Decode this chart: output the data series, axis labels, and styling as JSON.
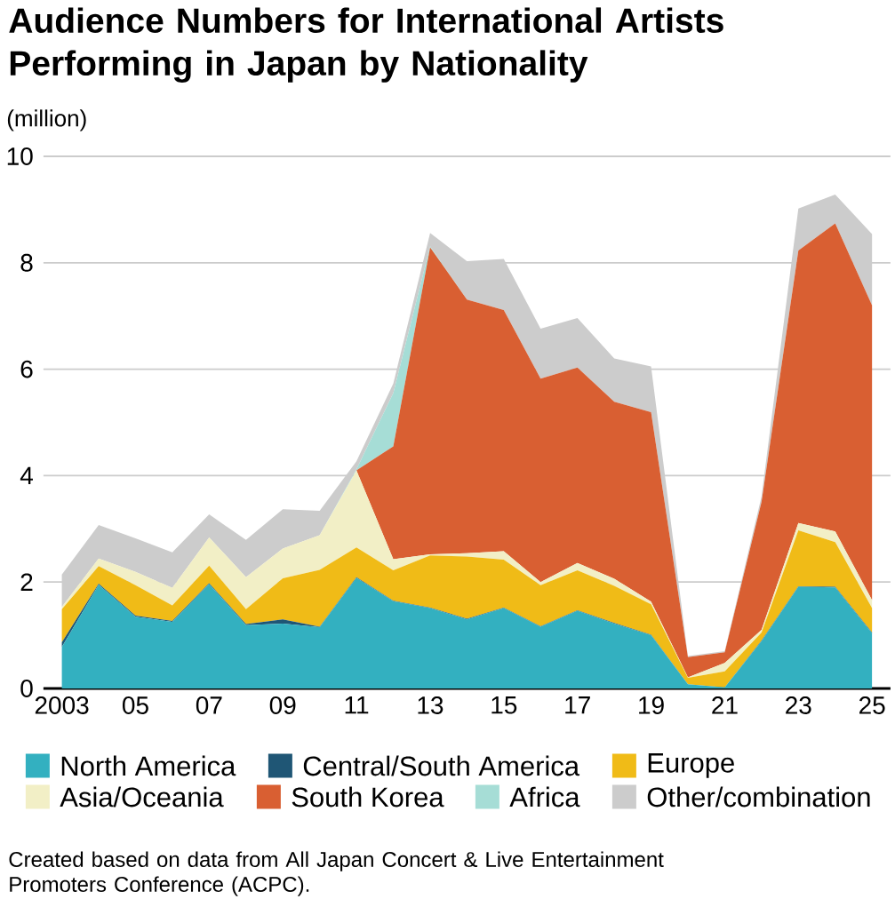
{
  "chart_data": {
    "type": "area",
    "stacked": true,
    "title": "Audience Numbers for International Artists Performing in Japan by Nationality",
    "ylabel": "(million)",
    "x": [
      2003,
      2004,
      2005,
      2006,
      2007,
      2008,
      2009,
      2010,
      2011,
      2012,
      2013,
      2014,
      2015,
      2016,
      2017,
      2018,
      2019,
      2020,
      2021,
      2022,
      2023,
      2024,
      2025
    ],
    "series": [
      {
        "name": "North America",
        "color": "#33b0c0",
        "values": [
          0.78,
          1.95,
          1.35,
          1.25,
          1.96,
          1.19,
          1.22,
          1.15,
          2.08,
          1.64,
          1.51,
          1.3,
          1.51,
          1.16,
          1.46,
          1.22,
          1.0,
          0.08,
          0.02,
          0.89,
          1.91,
          1.9,
          1.04
        ]
      },
      {
        "name": "Central/South America",
        "color": "#1f5675",
        "values": [
          0.09,
          0.02,
          0.02,
          0.02,
          0.02,
          0.02,
          0.08,
          0.01,
          0.01,
          0.01,
          0.01,
          0.01,
          0.01,
          0.01,
          0.01,
          0.01,
          0.01,
          0.0,
          0.0,
          0.01,
          0.01,
          0.01,
          0.01
        ]
      },
      {
        "name": "Europe",
        "color": "#f0bb17",
        "values": [
          0.62,
          0.33,
          0.57,
          0.29,
          0.33,
          0.28,
          0.77,
          1.07,
          0.56,
          0.57,
          0.98,
          1.17,
          0.9,
          0.77,
          0.75,
          0.7,
          0.57,
          0.12,
          0.3,
          0.15,
          1.05,
          0.84,
          0.46
        ]
      },
      {
        "name": "Asia/Oceania",
        "color": "#f2efc6",
        "values": [
          0.04,
          0.14,
          0.25,
          0.33,
          0.53,
          0.6,
          0.56,
          0.65,
          1.45,
          0.21,
          0.02,
          0.06,
          0.16,
          0.06,
          0.14,
          0.13,
          0.05,
          0.01,
          0.16,
          0.05,
          0.14,
          0.2,
          0.15
        ]
      },
      {
        "name": "South Korea",
        "color": "#d95f32",
        "values": [
          0,
          0,
          0,
          0,
          0,
          0,
          0,
          0,
          0,
          2.12,
          5.77,
          4.77,
          4.53,
          3.82,
          3.67,
          3.33,
          3.56,
          0.38,
          0.2,
          2.41,
          5.12,
          5.79,
          5.54
        ]
      },
      {
        "name": "Africa",
        "color": "#a6ddd6",
        "values": [
          0,
          0,
          0,
          0,
          0,
          0,
          0,
          0,
          0.02,
          1.0,
          0.02,
          0,
          0,
          0,
          0,
          0,
          0,
          0,
          0,
          0,
          0,
          0,
          0
        ]
      },
      {
        "name": "Other/combination",
        "color": "#cccccc",
        "values": [
          0.61,
          0.63,
          0.63,
          0.67,
          0.43,
          0.7,
          0.74,
          0.46,
          0.15,
          0.18,
          0.25,
          0.72,
          0.96,
          0.94,
          0.93,
          0.81,
          0.86,
          0.02,
          0.02,
          0.1,
          0.79,
          0.54,
          1.34
        ]
      }
    ],
    "xlim": [
      2002.5,
      2025.5
    ],
    "xticks": [
      {
        "value": 2003,
        "label": "2003"
      },
      {
        "value": 2005,
        "label": "05"
      },
      {
        "value": 2007,
        "label": "07"
      },
      {
        "value": 2009,
        "label": "09"
      },
      {
        "value": 2011,
        "label": "11"
      },
      {
        "value": 2013,
        "label": "13"
      },
      {
        "value": 2015,
        "label": "15"
      },
      {
        "value": 2017,
        "label": "17"
      },
      {
        "value": 2019,
        "label": "19"
      },
      {
        "value": 2021,
        "label": "21"
      },
      {
        "value": 2023,
        "label": "23"
      },
      {
        "value": 2025,
        "label": "25"
      }
    ],
    "ylim": [
      0,
      10
    ],
    "yticks": [
      0,
      2,
      4,
      6,
      8,
      10
    ],
    "grid": "y",
    "legend": "bottom",
    "annotations": [
      "Created based on data from All Japan Concert & Live Entertainment Promoters Conference (ACPC)."
    ]
  }
}
